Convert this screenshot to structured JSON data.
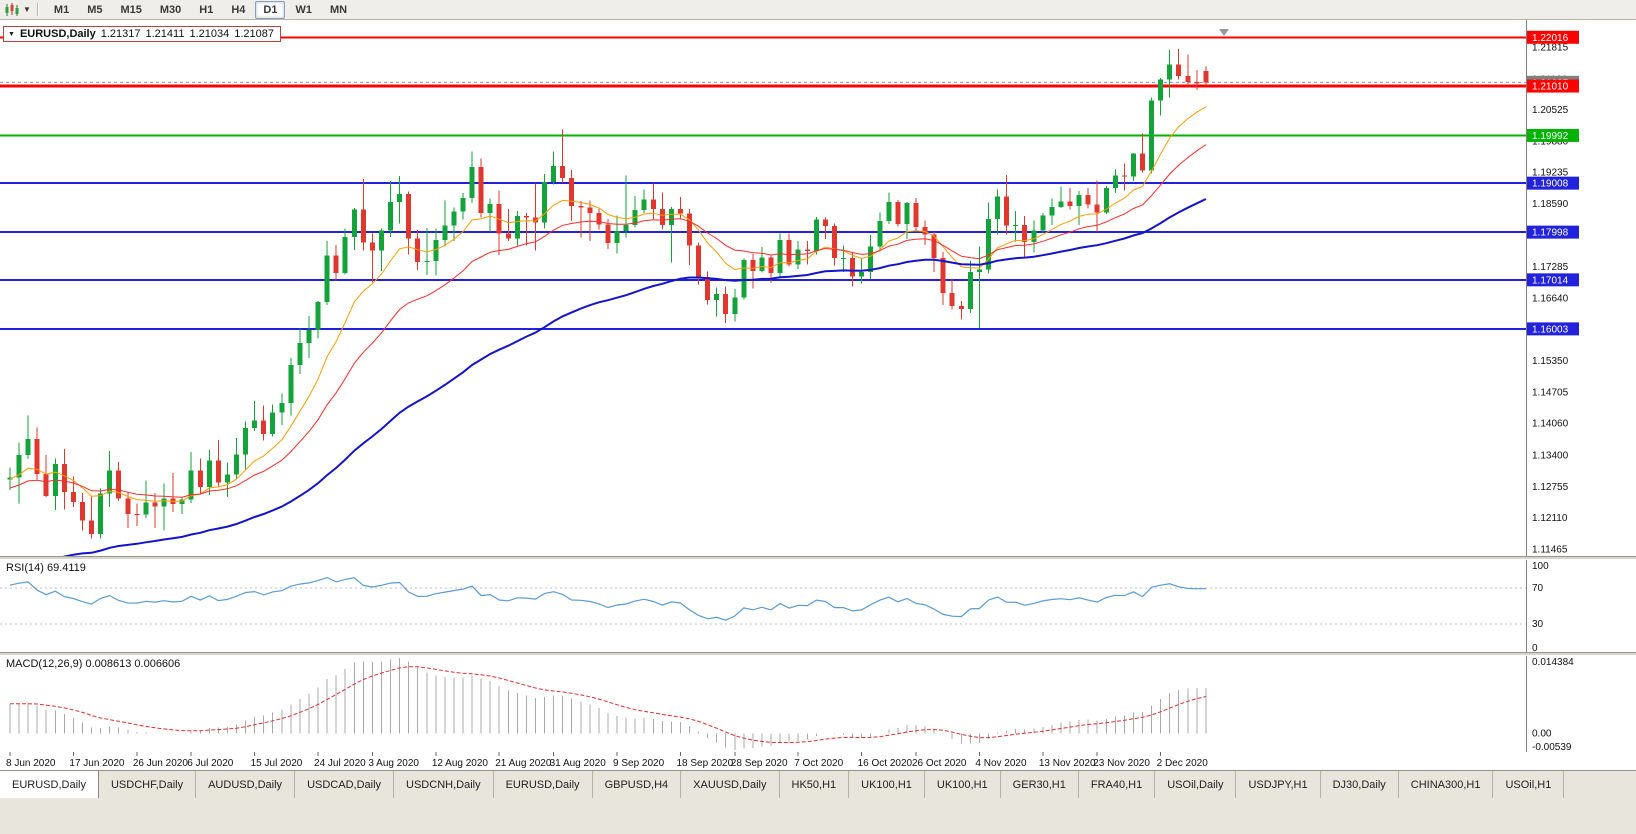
{
  "toolbar": {
    "timeframes": [
      {
        "label": "M1"
      },
      {
        "label": "M5"
      },
      {
        "label": "M15"
      },
      {
        "label": "M30"
      },
      {
        "label": "H1"
      },
      {
        "label": "H4"
      },
      {
        "label": "D1"
      },
      {
        "label": "W1"
      },
      {
        "label": "MN"
      }
    ],
    "active_timeframe": "D1"
  },
  "chart_title": {
    "symbol": "EURUSD,Daily",
    "open": "1.21317",
    "high": "1.21411",
    "low": "1.21034",
    "close": "1.21087"
  },
  "price_axis": {
    "ticks": [
      {
        "label": "1.21815",
        "value": 1.21815
      },
      {
        "label": "1.21160",
        "value": 1.2116
      },
      {
        "label": "1.20525",
        "value": 1.20525
      },
      {
        "label": "1.19880",
        "value": 1.1988
      },
      {
        "label": "1.19235",
        "value": 1.19235
      },
      {
        "label": "1.18590",
        "value": 1.1859
      },
      {
        "label": "1.17945",
        "value": 1.17945
      },
      {
        "label": "1.17285",
        "value": 1.17285
      },
      {
        "label": "1.16640",
        "value": 1.1664
      },
      {
        "label": "1.15995",
        "value": 1.15995
      },
      {
        "label": "1.15350",
        "value": 1.1535
      },
      {
        "label": "1.14705",
        "value": 1.14705
      },
      {
        "label": "1.14060",
        "value": 1.1406
      },
      {
        "label": "1.13400",
        "value": 1.134
      },
      {
        "label": "1.12755",
        "value": 1.12755
      },
      {
        "label": "1.12110",
        "value": 1.1211
      },
      {
        "label": "1.11465",
        "value": 1.11465
      }
    ]
  },
  "hlines": [
    {
      "label": "1.22016",
      "value": 1.22016,
      "color": "#ff0000",
      "width": 2
    },
    {
      "label": "1.21010",
      "value": 1.2101,
      "color": "#ff0000",
      "width": 3
    },
    {
      "label": "1.19992",
      "value": 1.19992,
      "color": "#00b300",
      "width": 2
    },
    {
      "label": "1.19008",
      "value": 1.19008,
      "color": "#2222dd",
      "width": 2
    },
    {
      "label": "1.17998",
      "value": 1.17998,
      "color": "#2222dd",
      "width": 2
    },
    {
      "label": "1.17014",
      "value": 1.17014,
      "color": "#2222dd",
      "width": 2
    },
    {
      "label": "1.16003",
      "value": 1.16003,
      "color": "#2222dd",
      "width": 2
    }
  ],
  "current_price": {
    "label": "1.21087",
    "value": 1.21087,
    "color": "#808080"
  },
  "rsi_panel": {
    "label": "RSI(14) 69.4119",
    "period": 14,
    "value": "69.4119",
    "axis_labels": [
      {
        "label": "100",
        "value": 100
      },
      {
        "label": "70",
        "value": 70
      },
      {
        "label": "30",
        "value": 30
      },
      {
        "label": "0",
        "value": 0
      }
    ],
    "levels": [
      70,
      30
    ],
    "line_color": "#5b9bd5",
    "seed_gain": 0.003,
    "seed_loss": 0.0011
  },
  "macd_panel": {
    "label": "MACD(12,26,9) 0.008613 0.006606",
    "fast": 12,
    "slow": 26,
    "signal": 9,
    "main_value": "0.008613",
    "signal_value": "0.006606",
    "axis_top": "0.014384",
    "axis_zero": "0.00",
    "axis_bottom": "-0.00539",
    "hist_color": "#a9a9a9",
    "signal_color": "#e03030",
    "seed_fast": 1.129,
    "seed_slow": 1.123
  },
  "x_axis": {
    "labels": [
      {
        "i": 0,
        "label": "8 Jun 2020"
      },
      {
        "i": 7,
        "label": "17 Jun 2020"
      },
      {
        "i": 14,
        "label": "26 Jun 2020"
      },
      {
        "i": 20,
        "label": "6 Jul 2020"
      },
      {
        "i": 27,
        "label": "15 Jul 2020"
      },
      {
        "i": 34,
        "label": "24 Jul 2020"
      },
      {
        "i": 40,
        "label": "3 Aug 2020"
      },
      {
        "i": 47,
        "label": "12 Aug 2020"
      },
      {
        "i": 54,
        "label": "21 Aug 2020"
      },
      {
        "i": 60,
        "label": "31 Aug 2020"
      },
      {
        "i": 67,
        "label": "9 Sep 2020"
      },
      {
        "i": 74,
        "label": "18 Sep 2020"
      },
      {
        "i": 80,
        "label": "28 Sep 2020"
      },
      {
        "i": 87,
        "label": "7 Oct 2020"
      },
      {
        "i": 94,
        "label": "16 Oct 2020"
      },
      {
        "i": 100,
        "label": "26 Oct 2020"
      },
      {
        "i": 107,
        "label": "4 Nov 2020"
      },
      {
        "i": 114,
        "label": "13 Nov 2020"
      },
      {
        "i": 120,
        "label": "23 Nov 2020"
      },
      {
        "i": 127,
        "label": "2 Dec 2020"
      }
    ]
  },
  "tabs": {
    "active": 0,
    "items": [
      {
        "label": "EURUSD,Daily"
      },
      {
        "label": "USDCHF,Daily"
      },
      {
        "label": "AUDUSD,Daily"
      },
      {
        "label": "USDCAD,Daily"
      },
      {
        "label": "USDCNH,Daily"
      },
      {
        "label": "EURUSD,Daily"
      },
      {
        "label": "GBPUSD,H4"
      },
      {
        "label": "XAUUSD,Daily"
      },
      {
        "label": "HK50,H1"
      },
      {
        "label": "UK100,H1"
      },
      {
        "label": "UK100,H1"
      },
      {
        "label": "GER30,H1"
      },
      {
        "label": "FRA40,H1"
      },
      {
        "label": "USOil,Daily"
      },
      {
        "label": "USDJPY,H1"
      },
      {
        "label": "DJ30,Daily"
      },
      {
        "label": "CHINA300,H1"
      },
      {
        "label": "USOil,H1"
      }
    ]
  },
  "chart_data": {
    "type": "candlestick",
    "symbol": "EURUSD",
    "timeframe": "Daily",
    "title": "EURUSD,Daily 1.21317 1.21411 1.21034 1.21087",
    "price_range": [
      1.1132,
      1.22207
    ],
    "up_color": "#13a33a",
    "down_color": "#e0382e",
    "moving_averages": [
      {
        "period": 10,
        "color": "#ff9c00",
        "width": 1,
        "seed": 1.129
      },
      {
        "period": 21,
        "color": "#ff2a2a",
        "width": 1,
        "seed": 1.127
      },
      {
        "period": 55,
        "color": "#1414cc",
        "width": 2,
        "seed": 1.108
      }
    ],
    "candles": [
      [
        1.129,
        1.1314,
        1.1268,
        1.1294
      ],
      [
        1.1294,
        1.1366,
        1.124,
        1.134
      ],
      [
        1.134,
        1.1422,
        1.1332,
        1.1373
      ],
      [
        1.1373,
        1.1397,
        1.129,
        1.1301
      ],
      [
        1.1301,
        1.134,
        1.1254,
        1.1256
      ],
      [
        1.1256,
        1.1333,
        1.1227,
        1.1322
      ],
      [
        1.1322,
        1.1353,
        1.1228,
        1.1264
      ],
      [
        1.1264,
        1.1296,
        1.1233,
        1.1243
      ],
      [
        1.1243,
        1.1262,
        1.1185,
        1.1205
      ],
      [
        1.1205,
        1.1255,
        1.1168,
        1.1177
      ],
      [
        1.1177,
        1.1271,
        1.1168,
        1.1261
      ],
      [
        1.1261,
        1.1349,
        1.1233,
        1.1308
      ],
      [
        1.1308,
        1.1326,
        1.1245,
        1.1251
      ],
      [
        1.1251,
        1.1264,
        1.119,
        1.1219
      ],
      [
        1.1219,
        1.124,
        1.1194,
        1.1218
      ],
      [
        1.1218,
        1.1288,
        1.121,
        1.1242
      ],
      [
        1.1242,
        1.1262,
        1.119,
        1.1234
      ],
      [
        1.1234,
        1.1281,
        1.1185,
        1.1251
      ],
      [
        1.1251,
        1.1303,
        1.1223,
        1.1239
      ],
      [
        1.1239,
        1.1254,
        1.1219,
        1.1248
      ],
      [
        1.1248,
        1.1346,
        1.1241,
        1.1308
      ],
      [
        1.1308,
        1.1333,
        1.1259,
        1.1274
      ],
      [
        1.1274,
        1.1351,
        1.1258,
        1.1329
      ],
      [
        1.1329,
        1.1371,
        1.1275,
        1.1284
      ],
      [
        1.1284,
        1.1325,
        1.1254,
        1.13
      ],
      [
        1.13,
        1.1375,
        1.1292,
        1.1341
      ],
      [
        1.1341,
        1.1409,
        1.131,
        1.1396
      ],
      [
        1.1396,
        1.1452,
        1.139,
        1.1411
      ],
      [
        1.1411,
        1.1442,
        1.137,
        1.1384
      ],
      [
        1.1384,
        1.1444,
        1.1378,
        1.1428
      ],
      [
        1.1428,
        1.1467,
        1.1402,
        1.1447
      ],
      [
        1.1447,
        1.154,
        1.1422,
        1.1526
      ],
      [
        1.1526,
        1.1601,
        1.1507,
        1.1571
      ],
      [
        1.1571,
        1.1627,
        1.154,
        1.1598
      ],
      [
        1.1598,
        1.1658,
        1.158,
        1.1656
      ],
      [
        1.1656,
        1.1781,
        1.165,
        1.1752
      ],
      [
        1.1752,
        1.1773,
        1.17,
        1.1716
      ],
      [
        1.1716,
        1.1807,
        1.1712,
        1.179
      ],
      [
        1.179,
        1.185,
        1.1763,
        1.1846
      ],
      [
        1.1846,
        1.1909,
        1.1762,
        1.1778
      ],
      [
        1.1778,
        1.1797,
        1.1696,
        1.1762
      ],
      [
        1.1762,
        1.1807,
        1.172,
        1.1803
      ],
      [
        1.1803,
        1.1905,
        1.179,
        1.1862
      ],
      [
        1.1862,
        1.1916,
        1.1818,
        1.1878
      ],
      [
        1.1878,
        1.1884,
        1.1754,
        1.1787
      ],
      [
        1.1787,
        1.1804,
        1.1722,
        1.1738
      ],
      [
        1.1738,
        1.1808,
        1.1711,
        1.174
      ],
      [
        1.174,
        1.1807,
        1.171,
        1.1784
      ],
      [
        1.1784,
        1.1865,
        1.177,
        1.1813
      ],
      [
        1.1813,
        1.1851,
        1.1782,
        1.1842
      ],
      [
        1.1842,
        1.188,
        1.1826,
        1.187
      ],
      [
        1.187,
        1.1966,
        1.186,
        1.1934
      ],
      [
        1.1934,
        1.1952,
        1.183,
        1.1839
      ],
      [
        1.1839,
        1.1869,
        1.1801,
        1.1858
      ],
      [
        1.1858,
        1.1886,
        1.1753,
        1.1797
      ],
      [
        1.1797,
        1.1848,
        1.1782,
        1.1787
      ],
      [
        1.1787,
        1.1843,
        1.1772,
        1.1833
      ],
      [
        1.1833,
        1.1839,
        1.1772,
        1.183
      ],
      [
        1.183,
        1.19,
        1.1762,
        1.182
      ],
      [
        1.182,
        1.192,
        1.1807,
        1.1903
      ],
      [
        1.1903,
        1.1966,
        1.1898,
        1.1936
      ],
      [
        1.1936,
        1.2011,
        1.1901,
        1.1911
      ],
      [
        1.1911,
        1.1928,
        1.1823,
        1.1854
      ],
      [
        1.1854,
        1.1864,
        1.1789,
        1.1851
      ],
      [
        1.1851,
        1.1865,
        1.1781,
        1.1839
      ],
      [
        1.1839,
        1.1848,
        1.1805,
        1.1816
      ],
      [
        1.1816,
        1.1827,
        1.1765,
        1.1777
      ],
      [
        1.1777,
        1.1834,
        1.1756,
        1.1802
      ],
      [
        1.1802,
        1.1917,
        1.1789,
        1.1814
      ],
      [
        1.1814,
        1.1874,
        1.1809,
        1.1845
      ],
      [
        1.1845,
        1.1888,
        1.1839,
        1.1867
      ],
      [
        1.1867,
        1.19,
        1.1827,
        1.1847
      ],
      [
        1.1847,
        1.1882,
        1.1805,
        1.1815
      ],
      [
        1.1815,
        1.1852,
        1.1737,
        1.1847
      ],
      [
        1.1847,
        1.1872,
        1.1826,
        1.1838
      ],
      [
        1.1838,
        1.1848,
        1.1732,
        1.1772
      ],
      [
        1.1772,
        1.1778,
        1.1692,
        1.1707
      ],
      [
        1.1707,
        1.1719,
        1.1651,
        1.166
      ],
      [
        1.166,
        1.1686,
        1.1626,
        1.1672
      ],
      [
        1.1672,
        1.1688,
        1.1612,
        1.1631
      ],
      [
        1.1631,
        1.1683,
        1.1616,
        1.1665
      ],
      [
        1.1665,
        1.1745,
        1.1661,
        1.1742
      ],
      [
        1.1742,
        1.1755,
        1.1684,
        1.172
      ],
      [
        1.172,
        1.1769,
        1.1717,
        1.1747
      ],
      [
        1.1747,
        1.1752,
        1.1695,
        1.1716
      ],
      [
        1.1716,
        1.1797,
        1.1705,
        1.1784
      ],
      [
        1.1784,
        1.1797,
        1.1729,
        1.1733
      ],
      [
        1.1733,
        1.1782,
        1.1724,
        1.1764
      ],
      [
        1.1764,
        1.1782,
        1.1733,
        1.1761
      ],
      [
        1.1761,
        1.1831,
        1.1754,
        1.1826
      ],
      [
        1.1826,
        1.183,
        1.1786,
        1.1812
      ],
      [
        1.1812,
        1.1818,
        1.1731,
        1.1746
      ],
      [
        1.1746,
        1.1772,
        1.1718,
        1.1746
      ],
      [
        1.1746,
        1.1758,
        1.1688,
        1.1708
      ],
      [
        1.1708,
        1.1746,
        1.1694,
        1.1718
      ],
      [
        1.1718,
        1.1794,
        1.1703,
        1.177
      ],
      [
        1.177,
        1.184,
        1.176,
        1.1823
      ],
      [
        1.1823,
        1.1881,
        1.1817,
        1.1862
      ],
      [
        1.1862,
        1.1866,
        1.1811,
        1.1817
      ],
      [
        1.1817,
        1.1862,
        1.1786,
        1.186
      ],
      [
        1.186,
        1.187,
        1.1803,
        1.181
      ],
      [
        1.181,
        1.1824,
        1.1773,
        1.1795
      ],
      [
        1.1795,
        1.18,
        1.1718,
        1.1746
      ],
      [
        1.1746,
        1.1759,
        1.165,
        1.1674
      ],
      [
        1.1674,
        1.1704,
        1.164,
        1.1647
      ],
      [
        1.1647,
        1.1658,
        1.162,
        1.1641
      ],
      [
        1.1641,
        1.174,
        1.1633,
        1.1718
      ],
      [
        1.1718,
        1.177,
        1.1602,
        1.1723
      ],
      [
        1.1723,
        1.1861,
        1.1715,
        1.1827
      ],
      [
        1.1827,
        1.1888,
        1.1795,
        1.1873
      ],
      [
        1.1873,
        1.1918,
        1.1795,
        1.1813
      ],
      [
        1.1813,
        1.1843,
        1.178,
        1.1815
      ],
      [
        1.1815,
        1.1833,
        1.1745,
        1.1779
      ],
      [
        1.1779,
        1.1824,
        1.1758,
        1.1803
      ],
      [
        1.1803,
        1.1839,
        1.1799,
        1.1834
      ],
      [
        1.1834,
        1.1869,
        1.1815,
        1.1852
      ],
      [
        1.1852,
        1.1894,
        1.185,
        1.1863
      ],
      [
        1.1863,
        1.1891,
        1.1846,
        1.1854
      ],
      [
        1.1854,
        1.1885,
        1.1815,
        1.1876
      ],
      [
        1.1876,
        1.1891,
        1.1849,
        1.1857
      ],
      [
        1.1857,
        1.1906,
        1.18,
        1.184
      ],
      [
        1.184,
        1.1895,
        1.1837,
        1.1891
      ],
      [
        1.1891,
        1.1929,
        1.188,
        1.1917
      ],
      [
        1.1917,
        1.1941,
        1.1886,
        1.1914
      ],
      [
        1.1914,
        1.1963,
        1.1905,
        1.1962
      ],
      [
        1.1962,
        1.2003,
        1.1923,
        1.1927
      ],
      [
        1.1927,
        1.2077,
        1.1921,
        1.2071
      ],
      [
        1.2071,
        1.2118,
        1.204,
        1.2115
      ],
      [
        1.2115,
        1.2175,
        1.2077,
        1.2145
      ],
      [
        1.2145,
        1.2177,
        1.2115,
        1.2122
      ],
      [
        1.2122,
        1.2166,
        1.21,
        1.2109
      ],
      [
        1.2109,
        1.2134,
        1.2093,
        1.2106
      ],
      [
        1.21317,
        1.21411,
        1.21034,
        1.21087
      ]
    ]
  }
}
